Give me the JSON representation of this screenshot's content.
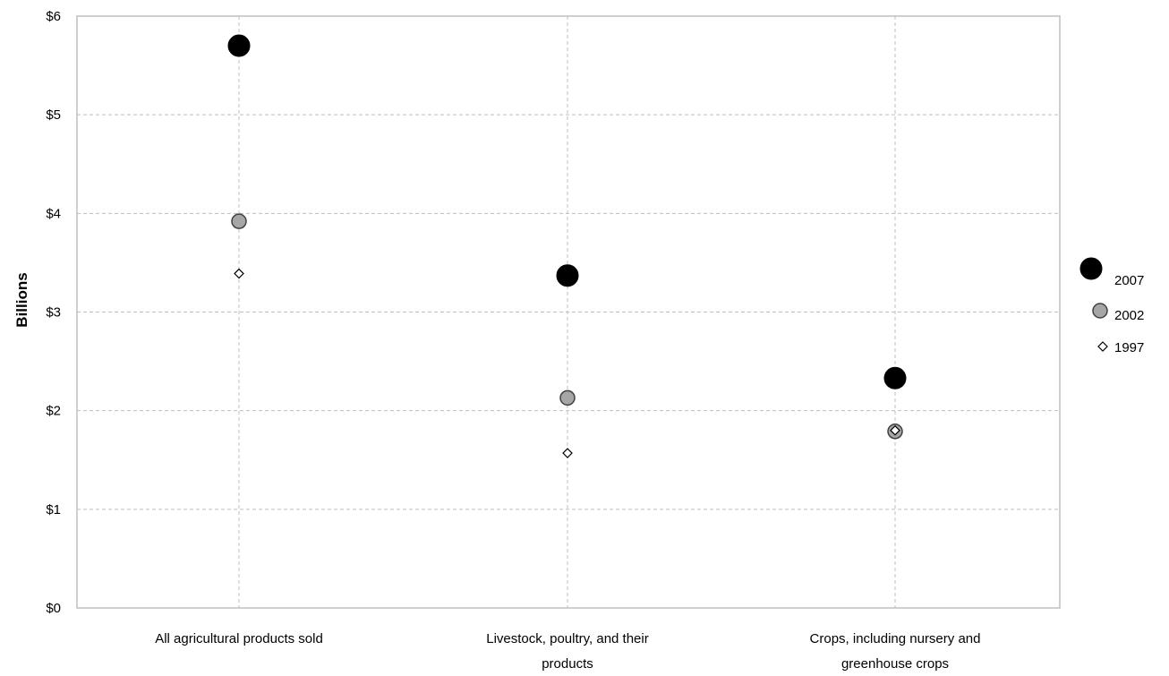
{
  "chart_data": {
    "type": "scatter",
    "title": "",
    "xlabel": "",
    "ylabel": "Billions",
    "ylim": [
      0,
      6
    ],
    "y_ticks": [
      "$0",
      "$1",
      "$2",
      "$3",
      "$4",
      "$5",
      "$6"
    ],
    "categories": [
      [
        "All agricultural products sold"
      ],
      [
        "Livestock, poultry, and their",
        "products"
      ],
      [
        "Crops, including nursery and",
        "greenhouse crops"
      ]
    ],
    "series": [
      {
        "name": "2007",
        "values": [
          5.7,
          3.37,
          2.33
        ],
        "color": "#000000",
        "marker": "large-circle"
      },
      {
        "name": "2002",
        "values": [
          3.92,
          2.13,
          1.79
        ],
        "color": "#a6a6a6",
        "marker": "circle"
      },
      {
        "name": "1997",
        "values": [
          3.39,
          1.57,
          1.8
        ],
        "color": "#ffffff",
        "marker": "diamond"
      }
    ],
    "grid": true,
    "legend_position": "right"
  }
}
